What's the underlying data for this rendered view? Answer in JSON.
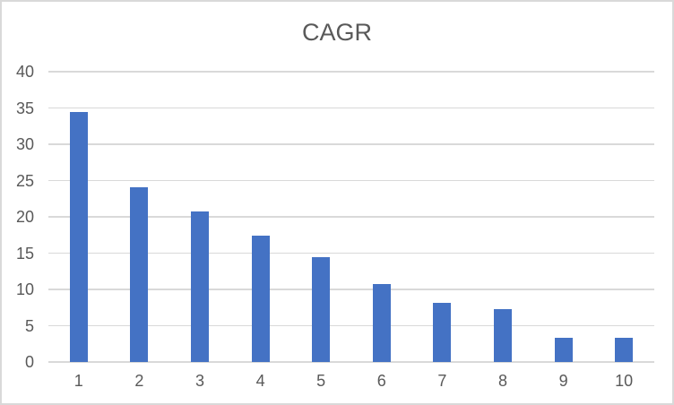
{
  "chart_data": {
    "type": "bar",
    "title": "CAGR",
    "categories": [
      "1",
      "2",
      "3",
      "4",
      "5",
      "6",
      "7",
      "8",
      "9",
      "10"
    ],
    "values": [
      34.5,
      24.1,
      20.7,
      17.4,
      14.5,
      10.8,
      8.2,
      7.3,
      3.3,
      3.3
    ],
    "xlabel": "",
    "ylabel": "",
    "ylim": [
      0,
      40
    ],
    "yticks": [
      0,
      5,
      10,
      15,
      20,
      25,
      30,
      35,
      40
    ],
    "grid": true,
    "legend": false,
    "colors": {
      "bar": "#4472C4",
      "gridline": "#D9D9D9",
      "axis_line": "#D9D9D9",
      "text": "#595959",
      "border": "#D9D9D9",
      "background": "#FFFFFF"
    }
  }
}
